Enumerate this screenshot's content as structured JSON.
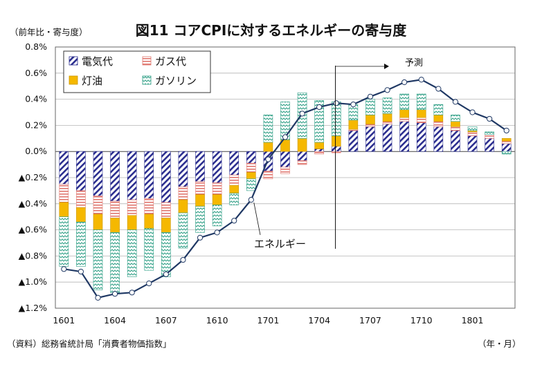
{
  "title": "図11 コアCPIに対するエネルギーの寄与度",
  "unit_label": "（前年比・寄与度）",
  "source": "（資料）総務省統計局「消費者物価指数」",
  "x_unit": "（年・月）",
  "chart_data": {
    "type": "bar",
    "stacked": true,
    "ylim": [
      -1.2,
      0.8
    ],
    "y_tick_labels": [
      "0.8%",
      "0.6%",
      "0.4%",
      "0.2%",
      "0.0%",
      "▲0.2%",
      "▲0.4%",
      "▲0.6%",
      "▲0.8%",
      "▲1.0%",
      "▲1.2%"
    ],
    "y_tick_values": [
      0.8,
      0.6,
      0.4,
      0.2,
      0.0,
      -0.2,
      -0.4,
      -0.6,
      -0.8,
      -1.0,
      -1.2
    ],
    "grid": true,
    "x_tick_labels": [
      {
        "label": "1601",
        "index": 0
      },
      {
        "label": "1604",
        "index": 3
      },
      {
        "label": "1607",
        "index": 6
      },
      {
        "label": "1610",
        "index": 9
      },
      {
        "label": "1701",
        "index": 12
      },
      {
        "label": "1704",
        "index": 15
      },
      {
        "label": "1707",
        "index": 18
      },
      {
        "label": "1710",
        "index": 21
      },
      {
        "label": "1801",
        "index": 24
      }
    ],
    "categories": [
      "1601",
      "1602",
      "1603",
      "1604",
      "1605",
      "1606",
      "1607",
      "1608",
      "1609",
      "1610",
      "1611",
      "1612",
      "1701",
      "1702",
      "1703",
      "1704",
      "1705",
      "1706",
      "1707",
      "1708",
      "1709",
      "1710",
      "1711",
      "1712",
      "1801",
      "1802",
      "1803"
    ],
    "legend_position": "top-left",
    "series": [
      {
        "name": "電気代",
        "key": "electricity",
        "values": [
          -0.25,
          -0.3,
          -0.34,
          -0.38,
          -0.37,
          -0.36,
          -0.39,
          -0.27,
          -0.23,
          -0.24,
          -0.18,
          -0.09,
          -0.15,
          -0.12,
          -0.07,
          0.02,
          0.04,
          0.16,
          0.19,
          0.21,
          0.23,
          0.22,
          0.19,
          0.16,
          0.12,
          0.1,
          0.06
        ]
      },
      {
        "name": "ガス代",
        "key": "gas",
        "values": [
          -0.14,
          -0.13,
          -0.14,
          -0.13,
          -0.12,
          -0.12,
          -0.12,
          -0.1,
          -0.1,
          -0.09,
          -0.08,
          -0.07,
          -0.06,
          -0.05,
          -0.03,
          -0.02,
          -0.01,
          0.01,
          0.02,
          0.02,
          0.03,
          0.04,
          0.04,
          0.03,
          0.03,
          0.03,
          0.02
        ]
      },
      {
        "name": "灯油",
        "key": "kerosene",
        "values": [
          -0.11,
          -0.11,
          -0.12,
          -0.11,
          -0.11,
          -0.11,
          -0.11,
          -0.1,
          -0.09,
          -0.08,
          -0.06,
          -0.05,
          0.07,
          0.09,
          0.1,
          0.05,
          0.08,
          0.07,
          0.07,
          0.06,
          0.06,
          0.06,
          0.05,
          0.04,
          0.01,
          0.0,
          0.02
        ]
      },
      {
        "name": "ガソリン",
        "key": "gasoline",
        "values": [
          -0.38,
          -0.34,
          -0.46,
          -0.46,
          -0.36,
          -0.32,
          -0.34,
          -0.27,
          -0.2,
          -0.16,
          -0.09,
          -0.09,
          0.21,
          0.29,
          0.35,
          0.32,
          0.26,
          0.12,
          0.12,
          0.12,
          0.12,
          0.12,
          0.08,
          0.05,
          0.03,
          0.02,
          -0.02
        ]
      }
    ],
    "line": {
      "name": "エネルギー",
      "values": [
        -0.9,
        -0.92,
        -1.12,
        -1.09,
        -1.08,
        -1.01,
        -0.94,
        -0.83,
        -0.66,
        -0.62,
        -0.53,
        -0.37,
        -0.06,
        0.11,
        0.29,
        0.34,
        0.37,
        0.36,
        0.42,
        0.47,
        0.53,
        0.55,
        0.48,
        0.38,
        0.3,
        0.25,
        0.16
      ]
    },
    "forecast_label": "予測",
    "forecast_start_index": 16,
    "annotation": "エネルギー",
    "colors": {
      "electricity": "#2b2e8f",
      "gas": "#e0776f",
      "kerosene": "#f5b800",
      "gasoline": "#2f9f86",
      "line": "#1f3864"
    }
  }
}
